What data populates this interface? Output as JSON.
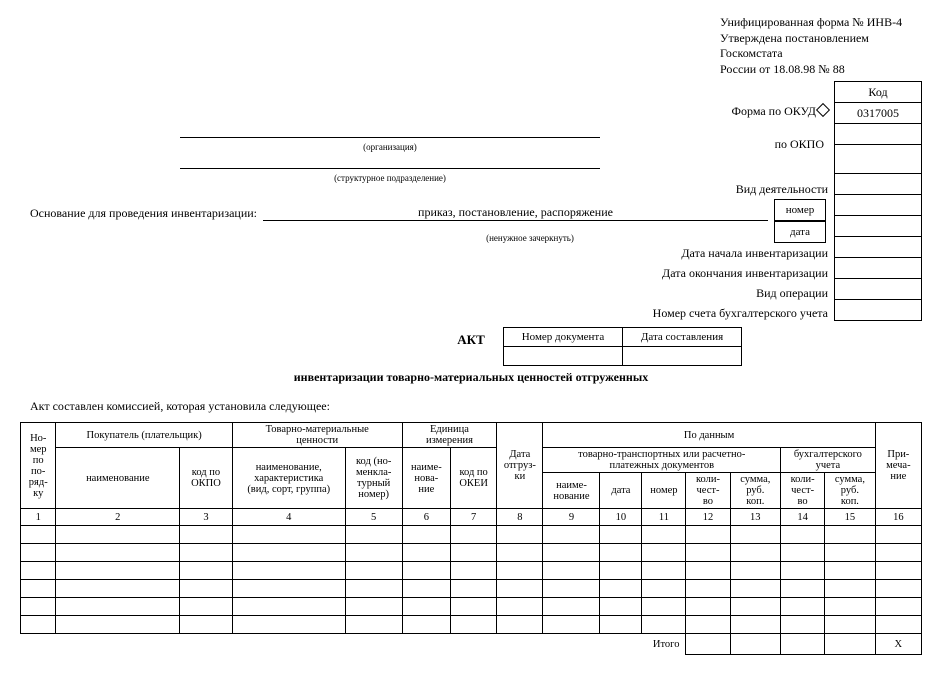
{
  "header": {
    "line1": "Унифицированная форма № ИНВ-4",
    "line2": "Утверждена постановлением Госкомстата",
    "line3": "России от 18.08.98 № 88"
  },
  "code_box": {
    "header": "Код",
    "form_okud_label": "Форма по ОКУД",
    "form_okud_value": "0317005",
    "okpo_label": "по ОКПО",
    "okpo_value": "",
    "vid_deyat_label": "Вид деятельности",
    "nomer_label": "номер",
    "data_label": "дата",
    "start_label": "Дата начала инвентаризации",
    "end_label": "Дата окончания инвентаризации",
    "vid_oper_label": "Вид операции",
    "account_label": "Номер счета бухгалтерского учета"
  },
  "org_caption": "(организация)",
  "struct_caption": "(структурное подразделение)",
  "osnovanie_label": "Основание для проведения инвентаризации:",
  "osnovanie_value": "приказ, постановление, распоряжение",
  "osnovanie_caption": "(ненужное зачеркнуть)",
  "doc_num": {
    "col1": "Номер документа",
    "col2": "Дата составления"
  },
  "act": {
    "title": "АКТ",
    "subtitle": "инвентаризации товарно-материальных ценностей отгруженных"
  },
  "intro": "Акт составлен комиссией, которая установила следующее:",
  "table_headers": {
    "c1": "Но-\nмер\nпо\nпо-\nряд-\nку",
    "c2_group": "Покупатель (плательщик)",
    "c2": "наименование",
    "c3": "код по\nОКПО",
    "c4_group": "Товарно-материальные\nценности",
    "c4": "наименование,\nхарактеристика\n(вид, сорт, группа)",
    "c5": "код (но-\nменкла-\nтурный\nномер)",
    "c6_group": "Единица\nизмерения",
    "c6": "наиме-\nнова-\nние",
    "c7": "код по\nОКЕИ",
    "c8": "Дата\nотгруз-\nки",
    "c9_group": "По данным",
    "c9_sub1": "товарно-транспортных или расчетно-\nплатежных документов",
    "c9_sub2": "бухгалтерского\nучета",
    "c9": "наиме-\nнование",
    "c10": "дата",
    "c11": "номер",
    "c12": "коли-\nчест-\nво",
    "c13": "сумма,\nруб.\nкоп.",
    "c14": "коли-\nчест-\nво",
    "c15": "сумма,\nруб.\nкоп.",
    "c16": "При-\nмеча-\nние"
  },
  "col_nums": [
    "1",
    "2",
    "3",
    "4",
    "5",
    "6",
    "7",
    "8",
    "9",
    "10",
    "11",
    "12",
    "13",
    "14",
    "15",
    "16"
  ],
  "itogo_label": "Итого",
  "itogo_x": "X"
}
